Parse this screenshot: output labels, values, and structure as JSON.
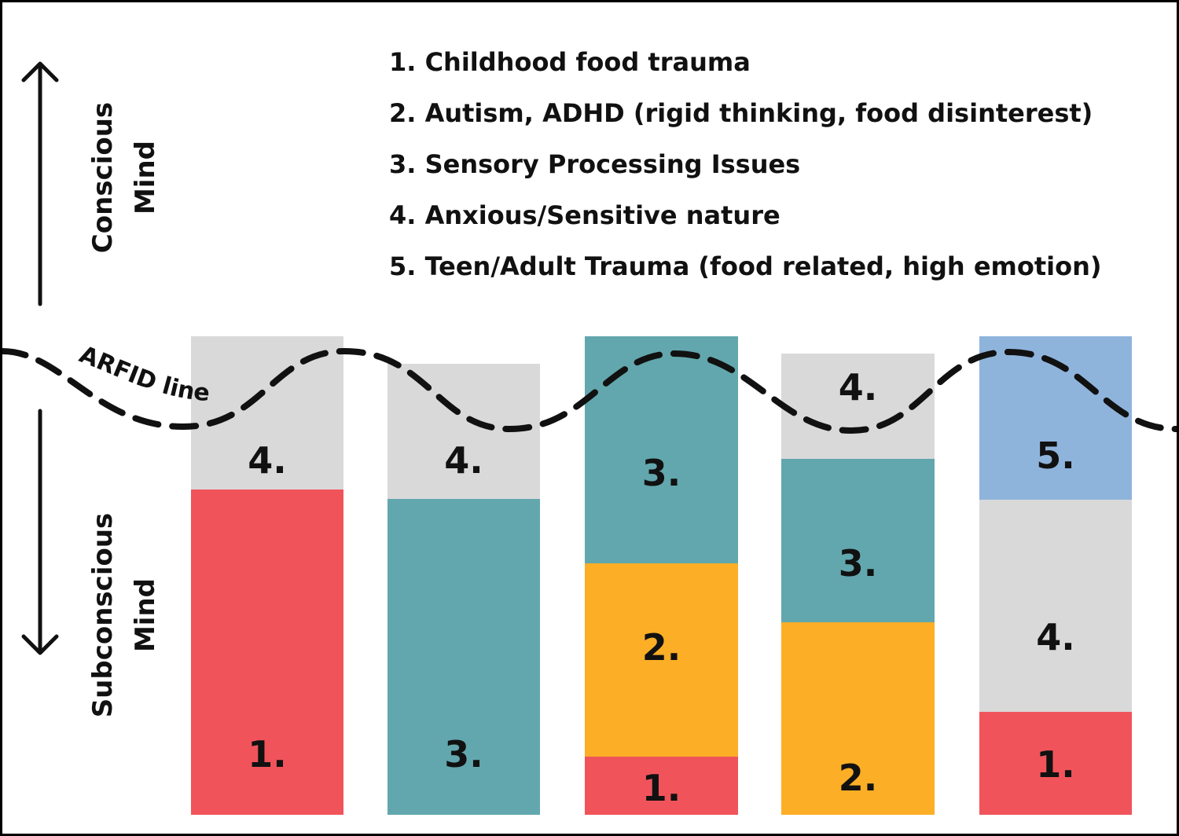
{
  "legend": [
    "1. Childhood food trauma",
    "2. Autism, ADHD (rigid thinking, food disinterest)",
    "3. Sensory Processing Issues",
    "4. Anxious/Sensitive nature",
    "5. Teen/Adult Trauma (food related, high emotion)"
  ],
  "conscious_label": [
    "Conscious",
    "Mind"
  ],
  "subconscious_label": [
    "Subconscious",
    "Mind"
  ],
  "arfid_label": "ARFID line",
  "colors": {
    "1": "#f0545a",
    "2": "#fbae26",
    "3": "#62a7ad",
    "4": "#d9d9d9",
    "5": "#8fb4dc"
  },
  "columns": [
    {
      "segments": [
        {
          "factor": "4.",
          "key": "4"
        },
        {
          "factor": "1.",
          "key": "1"
        }
      ]
    },
    {
      "segments": [
        {
          "factor": "4.",
          "key": "4"
        },
        {
          "factor": "3.",
          "key": "3"
        }
      ]
    },
    {
      "segments": [
        {
          "factor": "3.",
          "key": "3"
        },
        {
          "factor": "2.",
          "key": "2"
        },
        {
          "factor": "1.",
          "key": "1"
        }
      ]
    },
    {
      "segments": [
        {
          "factor": "4.",
          "key": "4"
        },
        {
          "factor": "3.",
          "key": "3"
        },
        {
          "factor": "2.",
          "key": "2"
        }
      ]
    },
    {
      "segments": [
        {
          "factor": "5.",
          "key": "5"
        },
        {
          "factor": "4.",
          "key": "4"
        },
        {
          "factor": "1.",
          "key": "1"
        }
      ]
    }
  ]
}
